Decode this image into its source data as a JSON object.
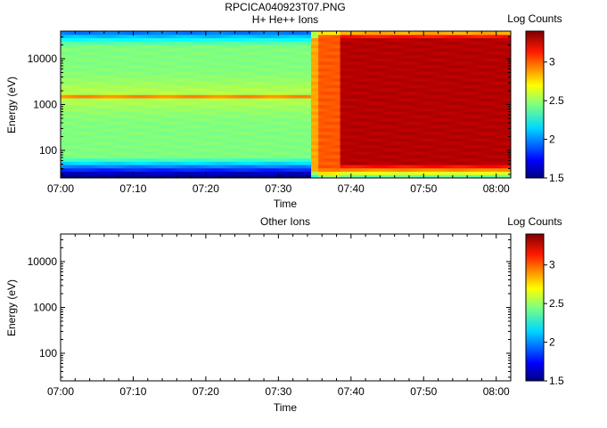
{
  "figure_title": "RPCICA040923T07.PNG",
  "chart_data": [
    {
      "type": "heatmap",
      "title": "H+ He++ Ions",
      "xlabel": "Time",
      "ylabel": "Energy (eV)",
      "x_ticks": [
        "07:00",
        "07:10",
        "07:20",
        "07:30",
        "07:40",
        "07:50",
        "08:00"
      ],
      "x_range_minutes": [
        0,
        62
      ],
      "y_ticks": [
        "100",
        "1000",
        "10000"
      ],
      "y_scale": "log",
      "y_range": [
        25,
        40000
      ],
      "colorbar": {
        "label": "Log Counts",
        "ticks": [
          "1.5",
          "2",
          "2.5",
          "3"
        ],
        "range": [
          1.5,
          3.4
        ]
      },
      "time_segments": [
        {
          "start_min": 0,
          "end_min": 34.5,
          "description": "moderate flux",
          "peak_log_counts": 2.6,
          "peak_energy_ev": 1600
        },
        {
          "start_min": 34.5,
          "end_min": 35.5,
          "description": "transition",
          "peak_log_counts": 2.9,
          "peak_energy_ev": 1600
        },
        {
          "start_min": 35.5,
          "end_min": 38.5,
          "description": "enhanced",
          "peak_log_counts": 3.0,
          "peak_energy_ev": 1600
        },
        {
          "start_min": 38.5,
          "end_min": 62,
          "description": "intense",
          "peak_log_counts": 3.3,
          "peak_energy_ev": 1600
        }
      ],
      "has_data": true
    },
    {
      "type": "heatmap",
      "title": "Other Ions",
      "xlabel": "Time",
      "ylabel": "Energy (eV)",
      "x_ticks": [
        "07:00",
        "07:10",
        "07:20",
        "07:30",
        "07:40",
        "07:50",
        "08:00"
      ],
      "x_range_minutes": [
        0,
        62
      ],
      "y_ticks": [
        "100",
        "1000",
        "10000"
      ],
      "y_scale": "log",
      "y_range": [
        25,
        40000
      ],
      "colorbar": {
        "label": "Log Counts",
        "ticks": [
          "1.5",
          "2",
          "2.5",
          "3"
        ],
        "range": [
          1.5,
          3.4
        ]
      },
      "has_data": false
    }
  ]
}
